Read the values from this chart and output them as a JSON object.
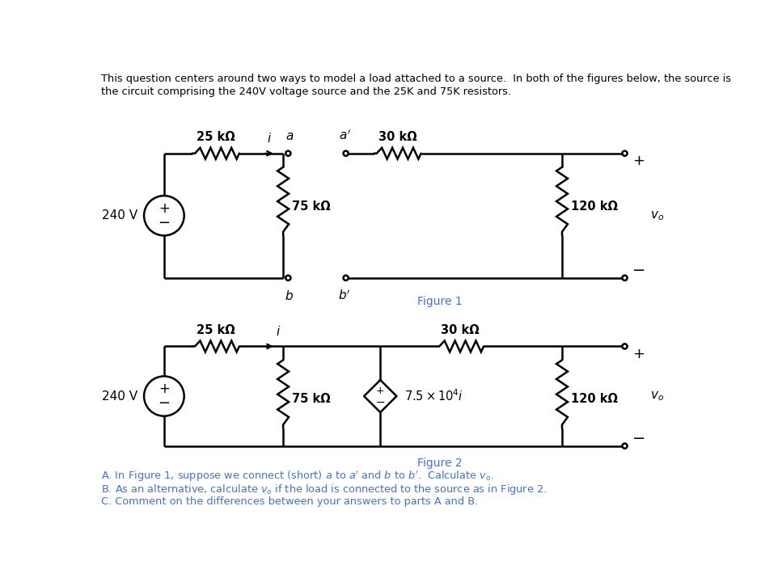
{
  "background_color": "#ffffff",
  "line_color": "#000000",
  "text_color": "#000000",
  "fig1_label": "Figure 1",
  "fig2_label": "Figure 2",
  "title_line1": "This question centers around two ways to model a load attached to a source.  In both of the figures below, the source is",
  "title_line2": "the circuit comprising the 240V voltage source and the 25K and 75K resistors.",
  "qA": "A. In Figure 1, suppose we connect (short) $a$ to $a'$ and $b$ to $b'$.  Calculate $v_o$.",
  "qB": "B. As an alternative, calculate $v_o$ if the load is connected to the source as in Figure 2.",
  "qC": "C. Comment on the differences between your answers to parts A and B.",
  "fig_label_color": "#4472C4",
  "q_text_color": "#4472C4"
}
